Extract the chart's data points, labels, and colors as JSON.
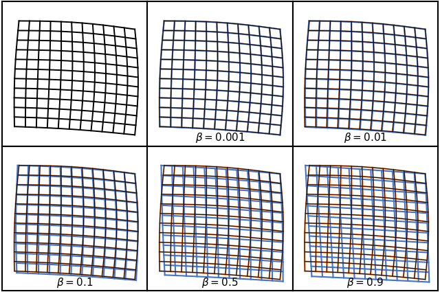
{
  "betas": [
    null,
    0.001,
    0.01,
    0.1,
    0.5,
    0.9
  ],
  "beta_labels": [
    "$\\beta = 0.001$",
    "$\\beta = 0.01$",
    "$\\beta = 0.1$",
    "$\\beta = 0.5$",
    "$\\beta = 0.9$"
  ],
  "grid_rows": 12,
  "grid_cols": 12,
  "black_color": "#000000",
  "orange_color": "#E87722",
  "blue_color": "#4472C4",
  "bg_color": "#ffffff",
  "lw_black": 1.4,
  "lw_orange": 1.5,
  "lw_blue": 1.5,
  "fig_width": 6.4,
  "fig_height": 4.25,
  "font_size": 11,
  "spine_lw": 1.5
}
